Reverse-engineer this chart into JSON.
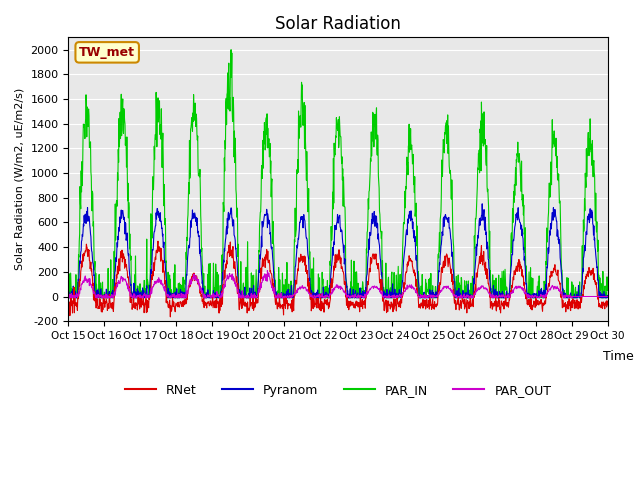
{
  "title": "Solar Radiation",
  "ylabel": "Solar Radiation (W/m2, uE/m2/s)",
  "xlabel": "Time",
  "ylim": [
    -200,
    2100
  ],
  "yticks": [
    -200,
    0,
    200,
    400,
    600,
    800,
    1000,
    1200,
    1400,
    1600,
    1800,
    2000
  ],
  "xtick_labels": [
    "Oct 15",
    "Oct 16",
    "Oct 17",
    "Oct 18",
    "Oct 19",
    "Oct 20",
    "Oct 21",
    "Oct 22",
    "Oct 23",
    "Oct 24",
    "Oct 25",
    "Oct 26",
    "Oct 27",
    "Oct 28",
    "Oct 29",
    "Oct 30"
  ],
  "station_label": "TW_met",
  "station_box_facecolor": "#ffffcc",
  "station_box_edgecolor": "#cc8800",
  "colors": {
    "RNet": "#dd0000",
    "Pyranom": "#0000cc",
    "PAR_IN": "#00cc00",
    "PAR_OUT": "#cc00cc"
  },
  "background_color": "#e8e8e8",
  "grid_color": "#ffffff",
  "n_days": 15,
  "points_per_day": 96,
  "par_in_peaks": [
    1510,
    1510,
    1510,
    1530,
    1800,
    1420,
    1520,
    1400,
    1380,
    1210,
    1300,
    1360,
    1130,
    1250,
    1240
  ],
  "pyranom_peaks": [
    650,
    675,
    675,
    680,
    680,
    670,
    640,
    630,
    660,
    660,
    660,
    670,
    660,
    660,
    660
  ],
  "rnet_peaks": [
    430,
    400,
    450,
    220,
    430,
    380,
    380,
    380,
    380,
    360,
    380,
    380,
    320,
    280,
    280
  ],
  "par_out_peaks": [
    140,
    140,
    130,
    150,
    170,
    170,
    75,
    80,
    80,
    80,
    80,
    80,
    80,
    80,
    0
  ],
  "rnet_night": -60,
  "par_in_night": 0,
  "pyranom_night": 0,
  "par_out_night": 0
}
